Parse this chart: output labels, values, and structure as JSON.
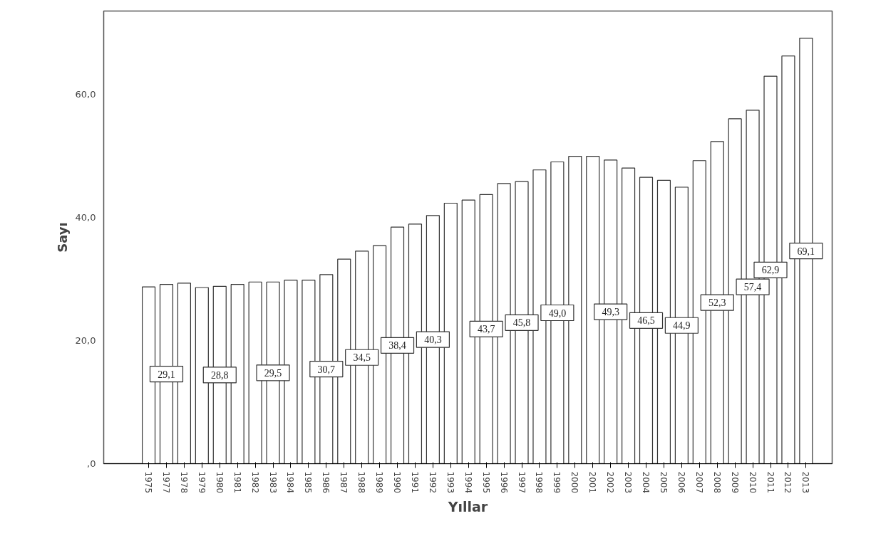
{
  "chart_data": {
    "type": "bar",
    "xlabel": "Yıllar",
    "ylabel": "Sayı",
    "categories": [
      "1975",
      "1977",
      "1978",
      "1979",
      "1980",
      "1981",
      "1982",
      "1983",
      "1984",
      "1985",
      "1986",
      "1987",
      "1988",
      "1989",
      "1990",
      "1991",
      "1992",
      "1993",
      "1994",
      "1995",
      "1996",
      "1997",
      "1998",
      "1999",
      "2000",
      "2001",
      "2002",
      "2003",
      "2004",
      "2005",
      "2006",
      "2007",
      "2008",
      "2009",
      "2010",
      "2011",
      "2012",
      "2013"
    ],
    "values": [
      28.7,
      29.1,
      29.3,
      28.6,
      28.8,
      29.1,
      29.5,
      29.5,
      29.8,
      29.8,
      30.7,
      33.2,
      34.5,
      35.4,
      38.4,
      38.9,
      40.3,
      42.3,
      42.8,
      43.7,
      45.5,
      45.8,
      47.7,
      49.0,
      49.9,
      49.9,
      49.3,
      48.0,
      46.5,
      46.0,
      44.9,
      49.2,
      52.3,
      56.0,
      57.4,
      62.9,
      66.2,
      69.1
    ],
    "value_labels": [
      null,
      "29,1",
      null,
      null,
      "28,8",
      null,
      null,
      "29,5",
      null,
      null,
      "30,7",
      null,
      "34,5",
      null,
      "38,4",
      null,
      "40,3",
      null,
      null,
      "43,7",
      null,
      "45,8",
      null,
      "49,0",
      null,
      null,
      "49,3",
      null,
      "46,5",
      null,
      "44,9",
      null,
      "52,3",
      null,
      "57,4",
      "62,9",
      null,
      "69,1"
    ],
    "color": "#ffffff",
    "ylim": [
      0,
      73.5
    ],
    "yticks": [
      {
        "value": 0,
        "label": ",0"
      },
      {
        "value": 20,
        "label": "20,0"
      },
      {
        "value": 40,
        "label": "40,0"
      },
      {
        "value": 60,
        "label": "60,0"
      }
    ],
    "grid": false
  }
}
